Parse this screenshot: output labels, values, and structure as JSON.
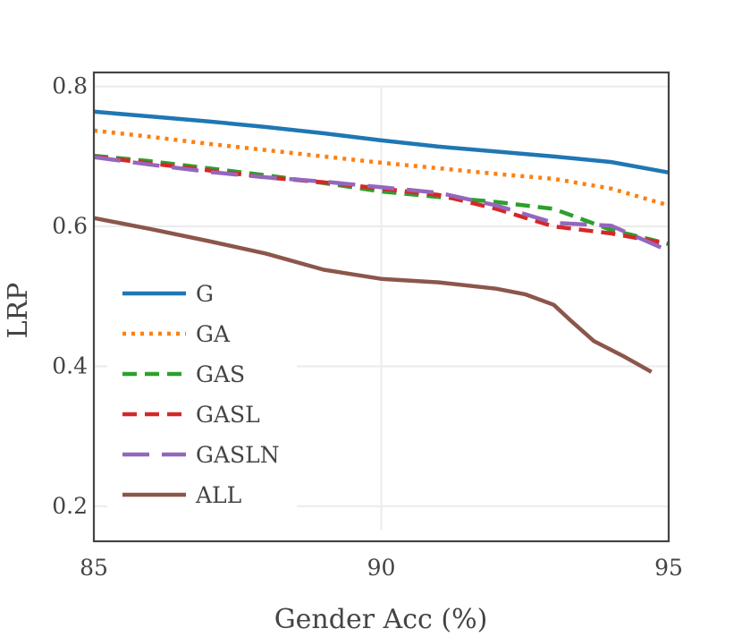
{
  "chart_data": {
    "type": "line",
    "title": "",
    "xlabel": "Gender Acc (%)",
    "ylabel": "LRP",
    "xlim": [
      85,
      95
    ],
    "ylim": [
      0.15,
      0.82
    ],
    "xticks": [
      85,
      90,
      95
    ],
    "xtick_labels": [
      "85",
      "90",
      "95"
    ],
    "yticks": [
      0.2,
      0.4,
      0.6,
      0.8
    ],
    "ytick_labels": [
      "0.2",
      "0.4",
      "0.6",
      "0.8"
    ],
    "grid": true,
    "legend_position": "center-left",
    "series": [
      {
        "name": "G",
        "color": "#1f77b4",
        "style": "solid",
        "x": [
          85,
          86,
          87,
          88,
          89,
          90,
          91,
          92,
          93,
          94,
          95
        ],
        "y": [
          0.764,
          0.757,
          0.75,
          0.742,
          0.733,
          0.723,
          0.714,
          0.707,
          0.7,
          0.692,
          0.677
        ]
      },
      {
        "name": "GA",
        "color": "#ff7f0e",
        "style": "dotted",
        "x": [
          85,
          86,
          87,
          88,
          89,
          90,
          91,
          92,
          93,
          94,
          95
        ],
        "y": [
          0.737,
          0.728,
          0.718,
          0.709,
          0.7,
          0.691,
          0.683,
          0.675,
          0.668,
          0.654,
          0.63
        ]
      },
      {
        "name": "GAS",
        "color": "#2ca02c",
        "style": "dashed",
        "x": [
          85,
          86,
          87,
          88,
          89,
          90,
          91,
          92,
          93,
          94,
          95
        ],
        "y": [
          0.701,
          0.693,
          0.683,
          0.673,
          0.662,
          0.65,
          0.642,
          0.635,
          0.625,
          0.595,
          0.575
        ]
      },
      {
        "name": "GASL",
        "color": "#d62728",
        "style": "dashed",
        "x": [
          85,
          86,
          87,
          88,
          89,
          90,
          91,
          92,
          93,
          94,
          95
        ],
        "y": [
          0.7,
          0.69,
          0.68,
          0.67,
          0.663,
          0.654,
          0.645,
          0.625,
          0.6,
          0.59,
          0.575
        ]
      },
      {
        "name": "GASLN",
        "color": "#9467bd",
        "style": "longdash",
        "x": [
          85,
          86,
          87,
          88,
          89,
          90,
          91,
          92,
          93,
          94,
          95
        ],
        "y": [
          0.699,
          0.688,
          0.678,
          0.67,
          0.664,
          0.656,
          0.648,
          0.63,
          0.605,
          0.601,
          0.565
        ]
      },
      {
        "name": "ALL",
        "color": "#8c564b",
        "style": "solid",
        "x": [
          85,
          86,
          87,
          88,
          89,
          90,
          91,
          92,
          92.5,
          93,
          93.3,
          93.7,
          94.2,
          94.7
        ],
        "y": [
          0.612,
          0.596,
          0.579,
          0.561,
          0.538,
          0.525,
          0.52,
          0.511,
          0.503,
          0.488,
          0.465,
          0.436,
          0.415,
          0.392
        ]
      }
    ]
  }
}
